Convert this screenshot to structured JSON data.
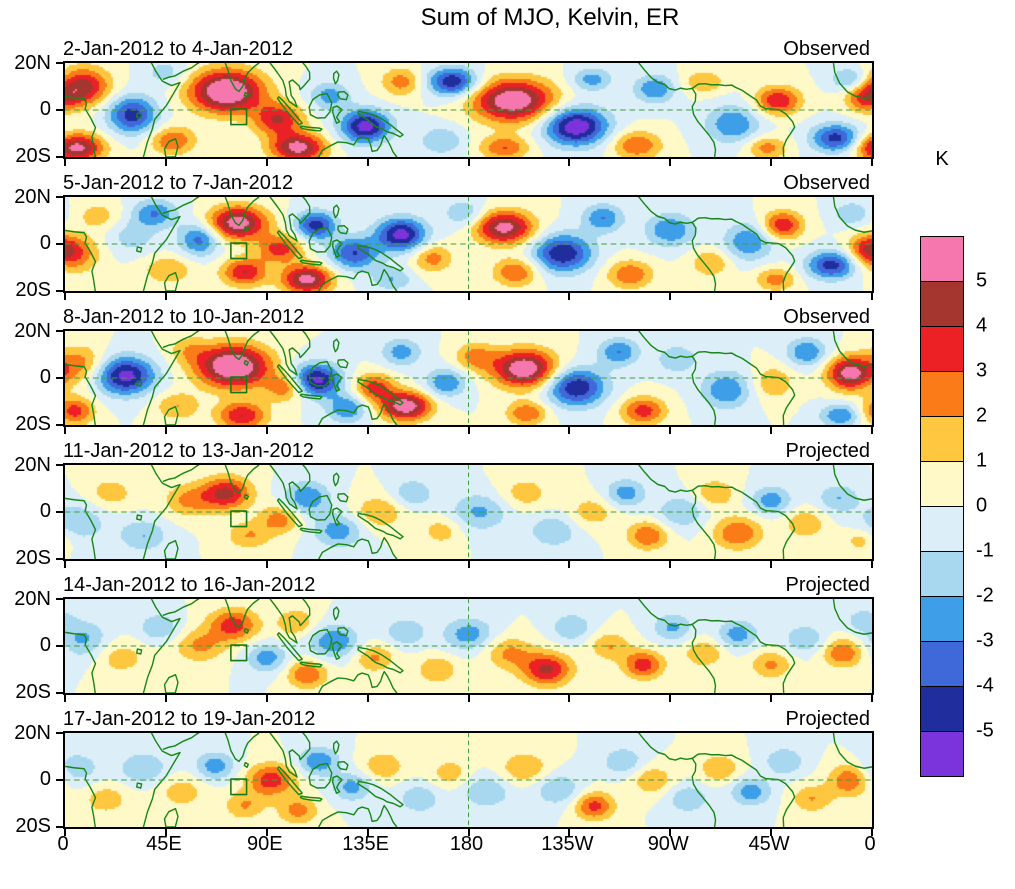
{
  "title": "Sum of MJO, Kelvin, ER",
  "colorbar": {
    "title": "K",
    "labels": [
      "5",
      "4",
      "3",
      "2",
      "1",
      "0",
      "-1",
      "-2",
      "-3",
      "-4",
      "-5"
    ]
  },
  "axes": {
    "x_ticks": [
      "0",
      "45E",
      "90E",
      "135E",
      "180",
      "135W",
      "90W",
      "45W",
      "0"
    ],
    "y_ticks": [
      "20N",
      "0",
      "20S"
    ]
  },
  "style": {
    "colors_ascending": [
      "#7B33DB",
      "#202D9C",
      "#3F68D9",
      "#3E9EE8",
      "#A8D8F0",
      "#DCEFF8",
      "#FFF9C7",
      "#FFC740",
      "#FB7B18",
      "#EC2125",
      "#A4362F",
      "#F577AD"
    ],
    "coast_color": "#178717",
    "dash_color": "#3F9E3F",
    "background": "#FFFFFF"
  },
  "chart_data": {
    "type": "heatmap",
    "title": "Sum of MJO, Kelvin, ER",
    "units": "K",
    "levels": [
      -5,
      -4,
      -3,
      -2,
      -1,
      0,
      1,
      2,
      3,
      4,
      5
    ],
    "lon_range": [
      0,
      360
    ],
    "lat_range": [
      -20,
      20
    ],
    "x_tick_lons": [
      0,
      45,
      90,
      135,
      180,
      225,
      270,
      315,
      360
    ],
    "blob_format": "[lon_deg_east_0_360, lat_deg, sigma_lon_deg, sigma_lat_deg, peak_anomaly_K]",
    "panels": [
      {
        "date_range": "2-Jan-2012 to 4-Jan-2012",
        "status": "Observed",
        "blobs": [
          [
            8,
            10,
            12,
            8,
            4.5
          ],
          [
            5,
            -16,
            12,
            6,
            5.5
          ],
          [
            30,
            -2,
            11,
            8,
            -4.5
          ],
          [
            48,
            -13,
            10,
            6,
            3
          ],
          [
            45,
            16,
            10,
            6,
            -1.5
          ],
          [
            72,
            8,
            16,
            9,
            6.8
          ],
          [
            95,
            -4,
            11,
            7,
            4
          ],
          [
            104,
            -16,
            12,
            6,
            5.5
          ],
          [
            118,
            6,
            9,
            6,
            -2.5
          ],
          [
            134,
            -7,
            11,
            7,
            -5.5
          ],
          [
            150,
            12,
            9,
            6,
            2.5
          ],
          [
            173,
            12,
            11,
            6,
            -5
          ],
          [
            168,
            -13,
            10,
            6,
            -2
          ],
          [
            200,
            4,
            18,
            9,
            6.2
          ],
          [
            196,
            -16,
            11,
            5,
            3
          ],
          [
            228,
            -7,
            14,
            8,
            -6
          ],
          [
            235,
            13,
            9,
            5,
            -2.5
          ],
          [
            255,
            -15,
            11,
            6,
            3
          ],
          [
            263,
            9,
            9,
            6,
            -3
          ],
          [
            285,
            12,
            9,
            5,
            2
          ],
          [
            298,
            -6,
            12,
            8,
            -3
          ],
          [
            318,
            4,
            10,
            6,
            4
          ],
          [
            313,
            -16,
            9,
            5,
            2.5
          ],
          [
            344,
            -12,
            11,
            6,
            -4.5
          ],
          [
            350,
            13,
            8,
            5,
            -2.5
          ],
          [
            357,
            5,
            9,
            6,
            3
          ]
        ]
      },
      {
        "date_range": "5-Jan-2012 to 7-Jan-2012",
        "status": "Observed",
        "blobs": [
          [
            4,
            -4,
            11,
            8,
            3
          ],
          [
            15,
            12,
            10,
            6,
            1.5
          ],
          [
            30,
            3,
            11,
            7,
            -1.5
          ],
          [
            40,
            13,
            10,
            6,
            -3
          ],
          [
            46,
            -11,
            11,
            6,
            2
          ],
          [
            60,
            2,
            9,
            7,
            -3.5
          ],
          [
            77,
            9,
            13,
            7,
            5.8
          ],
          [
            80,
            -12,
            10,
            6,
            4
          ],
          [
            96,
            -2,
            10,
            6,
            3.5
          ],
          [
            108,
            -15,
            11,
            6,
            5.5
          ],
          [
            112,
            8,
            9,
            6,
            -4.5
          ],
          [
            129,
            -4,
            11,
            7,
            -4
          ],
          [
            150,
            4,
            11,
            7,
            -5.5
          ],
          [
            146,
            -15,
            9,
            5,
            -2
          ],
          [
            164,
            -6,
            9,
            6,
            2.5
          ],
          [
            178,
            13,
            9,
            6,
            -2
          ],
          [
            196,
            7,
            13,
            7,
            5.5
          ],
          [
            201,
            -12,
            10,
            6,
            3
          ],
          [
            222,
            -4,
            13,
            8,
            -5
          ],
          [
            240,
            11,
            9,
            6,
            -3
          ],
          [
            252,
            -13,
            10,
            6,
            3
          ],
          [
            270,
            6,
            11,
            7,
            -3
          ],
          [
            288,
            -8,
            9,
            6,
            2
          ],
          [
            305,
            1,
            11,
            8,
            -3
          ],
          [
            320,
            8,
            9,
            6,
            4
          ],
          [
            317,
            -15,
            9,
            5,
            2.5
          ],
          [
            342,
            -9,
            11,
            6,
            -4.5
          ],
          [
            351,
            13,
            8,
            5,
            -2
          ],
          [
            357,
            -2,
            8,
            6,
            2.5
          ]
        ]
      },
      {
        "date_range": "8-Jan-2012 to 10-Jan-2012",
        "status": "Observed",
        "blobs": [
          [
            7,
            6,
            11,
            8,
            2.5
          ],
          [
            4,
            -14,
            9,
            6,
            3.5
          ],
          [
            27,
            1,
            13,
            8,
            -5.5
          ],
          [
            50,
            -12,
            10,
            6,
            2
          ],
          [
            55,
            12,
            9,
            6,
            1.5
          ],
          [
            75,
            5,
            16,
            9,
            6.8
          ],
          [
            79,
            -16,
            11,
            6,
            4
          ],
          [
            99,
            -4,
            9,
            6,
            3
          ],
          [
            112,
            -1,
            11,
            7,
            -5.5
          ],
          [
            126,
            -13,
            9,
            6,
            -3
          ],
          [
            138,
            -4,
            9,
            6,
            3.5
          ],
          [
            152,
            -12,
            11,
            6,
            6
          ],
          [
            150,
            11,
            9,
            6,
            -2.5
          ],
          [
            170,
            -2,
            9,
            6,
            -3
          ],
          [
            183,
            9,
            9,
            6,
            2.5
          ],
          [
            205,
            4,
            14,
            8,
            6.2
          ],
          [
            206,
            -15,
            9,
            5,
            3
          ],
          [
            228,
            -4,
            13,
            8,
            -5
          ],
          [
            247,
            11,
            9,
            6,
            -3
          ],
          [
            258,
            -14,
            10,
            6,
            3.5
          ],
          [
            273,
            8,
            9,
            6,
            -2
          ],
          [
            295,
            -5,
            11,
            8,
            -3
          ],
          [
            316,
            -2,
            9,
            7,
            2
          ],
          [
            331,
            11,
            9,
            6,
            -3
          ],
          [
            350,
            2,
            10,
            7,
            5.6
          ],
          [
            346,
            -16,
            9,
            5,
            -3
          ]
        ]
      },
      {
        "date_range": "11-Jan-2012 to 13-Jan-2012",
        "status": "Projected",
        "blobs": [
          [
            6,
            -4,
            13,
            9,
            -1.8
          ],
          [
            20,
            8,
            11,
            7,
            1.6
          ],
          [
            35,
            -10,
            11,
            7,
            -2
          ],
          [
            55,
            5,
            11,
            7,
            2.2
          ],
          [
            72,
            8,
            11,
            7,
            4.3
          ],
          [
            82,
            -10,
            10,
            6,
            2
          ],
          [
            96,
            -3,
            9,
            6,
            2.6
          ],
          [
            108,
            6,
            10,
            7,
            -3
          ],
          [
            122,
            -8,
            11,
            7,
            -2.6
          ],
          [
            140,
            0,
            11,
            7,
            2
          ],
          [
            155,
            8,
            9,
            6,
            -2
          ],
          [
            168,
            -8,
            9,
            6,
            1.6
          ],
          [
            185,
            0,
            13,
            8,
            -2.2
          ],
          [
            205,
            8,
            11,
            7,
            1.6
          ],
          [
            218,
            -8,
            11,
            7,
            -2
          ],
          [
            235,
            0,
            11,
            7,
            1.6
          ],
          [
            250,
            8,
            9,
            6,
            -2.6
          ],
          [
            260,
            -10,
            9,
            6,
            3
          ],
          [
            275,
            0,
            11,
            7,
            -2
          ],
          [
            290,
            8,
            9,
            6,
            2
          ],
          [
            300,
            -9,
            11,
            7,
            3
          ],
          [
            315,
            5,
            9,
            6,
            -2.6
          ],
          [
            330,
            -5,
            9,
            6,
            2
          ],
          [
            345,
            6,
            9,
            6,
            -2
          ],
          [
            355,
            -12,
            8,
            5,
            1.6
          ]
        ]
      },
      {
        "date_range": "14-Jan-2012 to 16-Jan-2012",
        "status": "Projected",
        "blobs": [
          [
            8,
            3,
            11,
            8,
            -2.2
          ],
          [
            25,
            -5,
            11,
            7,
            1.6
          ],
          [
            42,
            8,
            9,
            6,
            -2
          ],
          [
            60,
            0,
            11,
            7,
            2.2
          ],
          [
            75,
            9,
            11,
            7,
            3.6
          ],
          [
            90,
            -5,
            9,
            6,
            -2.6
          ],
          [
            103,
            10,
            9,
            6,
            2
          ],
          [
            108,
            -12,
            9,
            6,
            3
          ],
          [
            120,
            2,
            11,
            7,
            -3
          ],
          [
            138,
            -5,
            9,
            6,
            2.2
          ],
          [
            152,
            6,
            9,
            6,
            -2
          ],
          [
            166,
            -10,
            9,
            6,
            2
          ],
          [
            180,
            5,
            11,
            7,
            -2.6
          ],
          [
            198,
            -3,
            11,
            7,
            2.2
          ],
          [
            215,
            -10,
            11,
            7,
            4.2
          ],
          [
            226,
            8,
            9,
            6,
            -2
          ],
          [
            243,
            0,
            9,
            6,
            2
          ],
          [
            258,
            -8,
            9,
            6,
            3.6
          ],
          [
            271,
            8,
            9,
            6,
            -2.2
          ],
          [
            285,
            -3,
            9,
            6,
            2
          ],
          [
            300,
            5,
            9,
            6,
            -2.6
          ],
          [
            315,
            -8,
            9,
            6,
            2.2
          ],
          [
            330,
            3,
            9,
            6,
            -2
          ],
          [
            347,
            -3,
            9,
            6,
            3
          ],
          [
            356,
            11,
            8,
            5,
            -1.6
          ]
        ]
      },
      {
        "date_range": "17-Jan-2012 to 19-Jan-2012",
        "status": "Projected",
        "blobs": [
          [
            5,
            5,
            12,
            8,
            -1.6
          ],
          [
            18,
            -8,
            11,
            7,
            1.6
          ],
          [
            35,
            5,
            11,
            7,
            -2
          ],
          [
            52,
            -5,
            11,
            7,
            1.6
          ],
          [
            67,
            6,
            9,
            6,
            -2.6
          ],
          [
            80,
            -11,
            9,
            6,
            2
          ],
          [
            92,
            0,
            11,
            7,
            3.6
          ],
          [
            104,
            -13,
            9,
            6,
            2.4
          ],
          [
            113,
            8,
            9,
            6,
            -3
          ],
          [
            128,
            -3,
            9,
            6,
            -2.4
          ],
          [
            142,
            6,
            9,
            6,
            2
          ],
          [
            158,
            -8,
            9,
            6,
            -2
          ],
          [
            172,
            3,
            9,
            6,
            1.6
          ],
          [
            188,
            -5,
            11,
            7,
            -2
          ],
          [
            205,
            5,
            11,
            7,
            2
          ],
          [
            220,
            -4,
            11,
            7,
            -2
          ],
          [
            236,
            -11,
            9,
            6,
            3.4
          ],
          [
            249,
            8,
            9,
            6,
            -2
          ],
          [
            262,
            0,
            9,
            6,
            2
          ],
          [
            278,
            -8,
            9,
            6,
            -2
          ],
          [
            292,
            5,
            9,
            6,
            2
          ],
          [
            306,
            -5,
            9,
            6,
            -2.6
          ],
          [
            321,
            8,
            9,
            6,
            -2
          ],
          [
            333,
            -8,
            9,
            6,
            2
          ],
          [
            350,
            0,
            9,
            7,
            3
          ]
        ]
      }
    ]
  }
}
